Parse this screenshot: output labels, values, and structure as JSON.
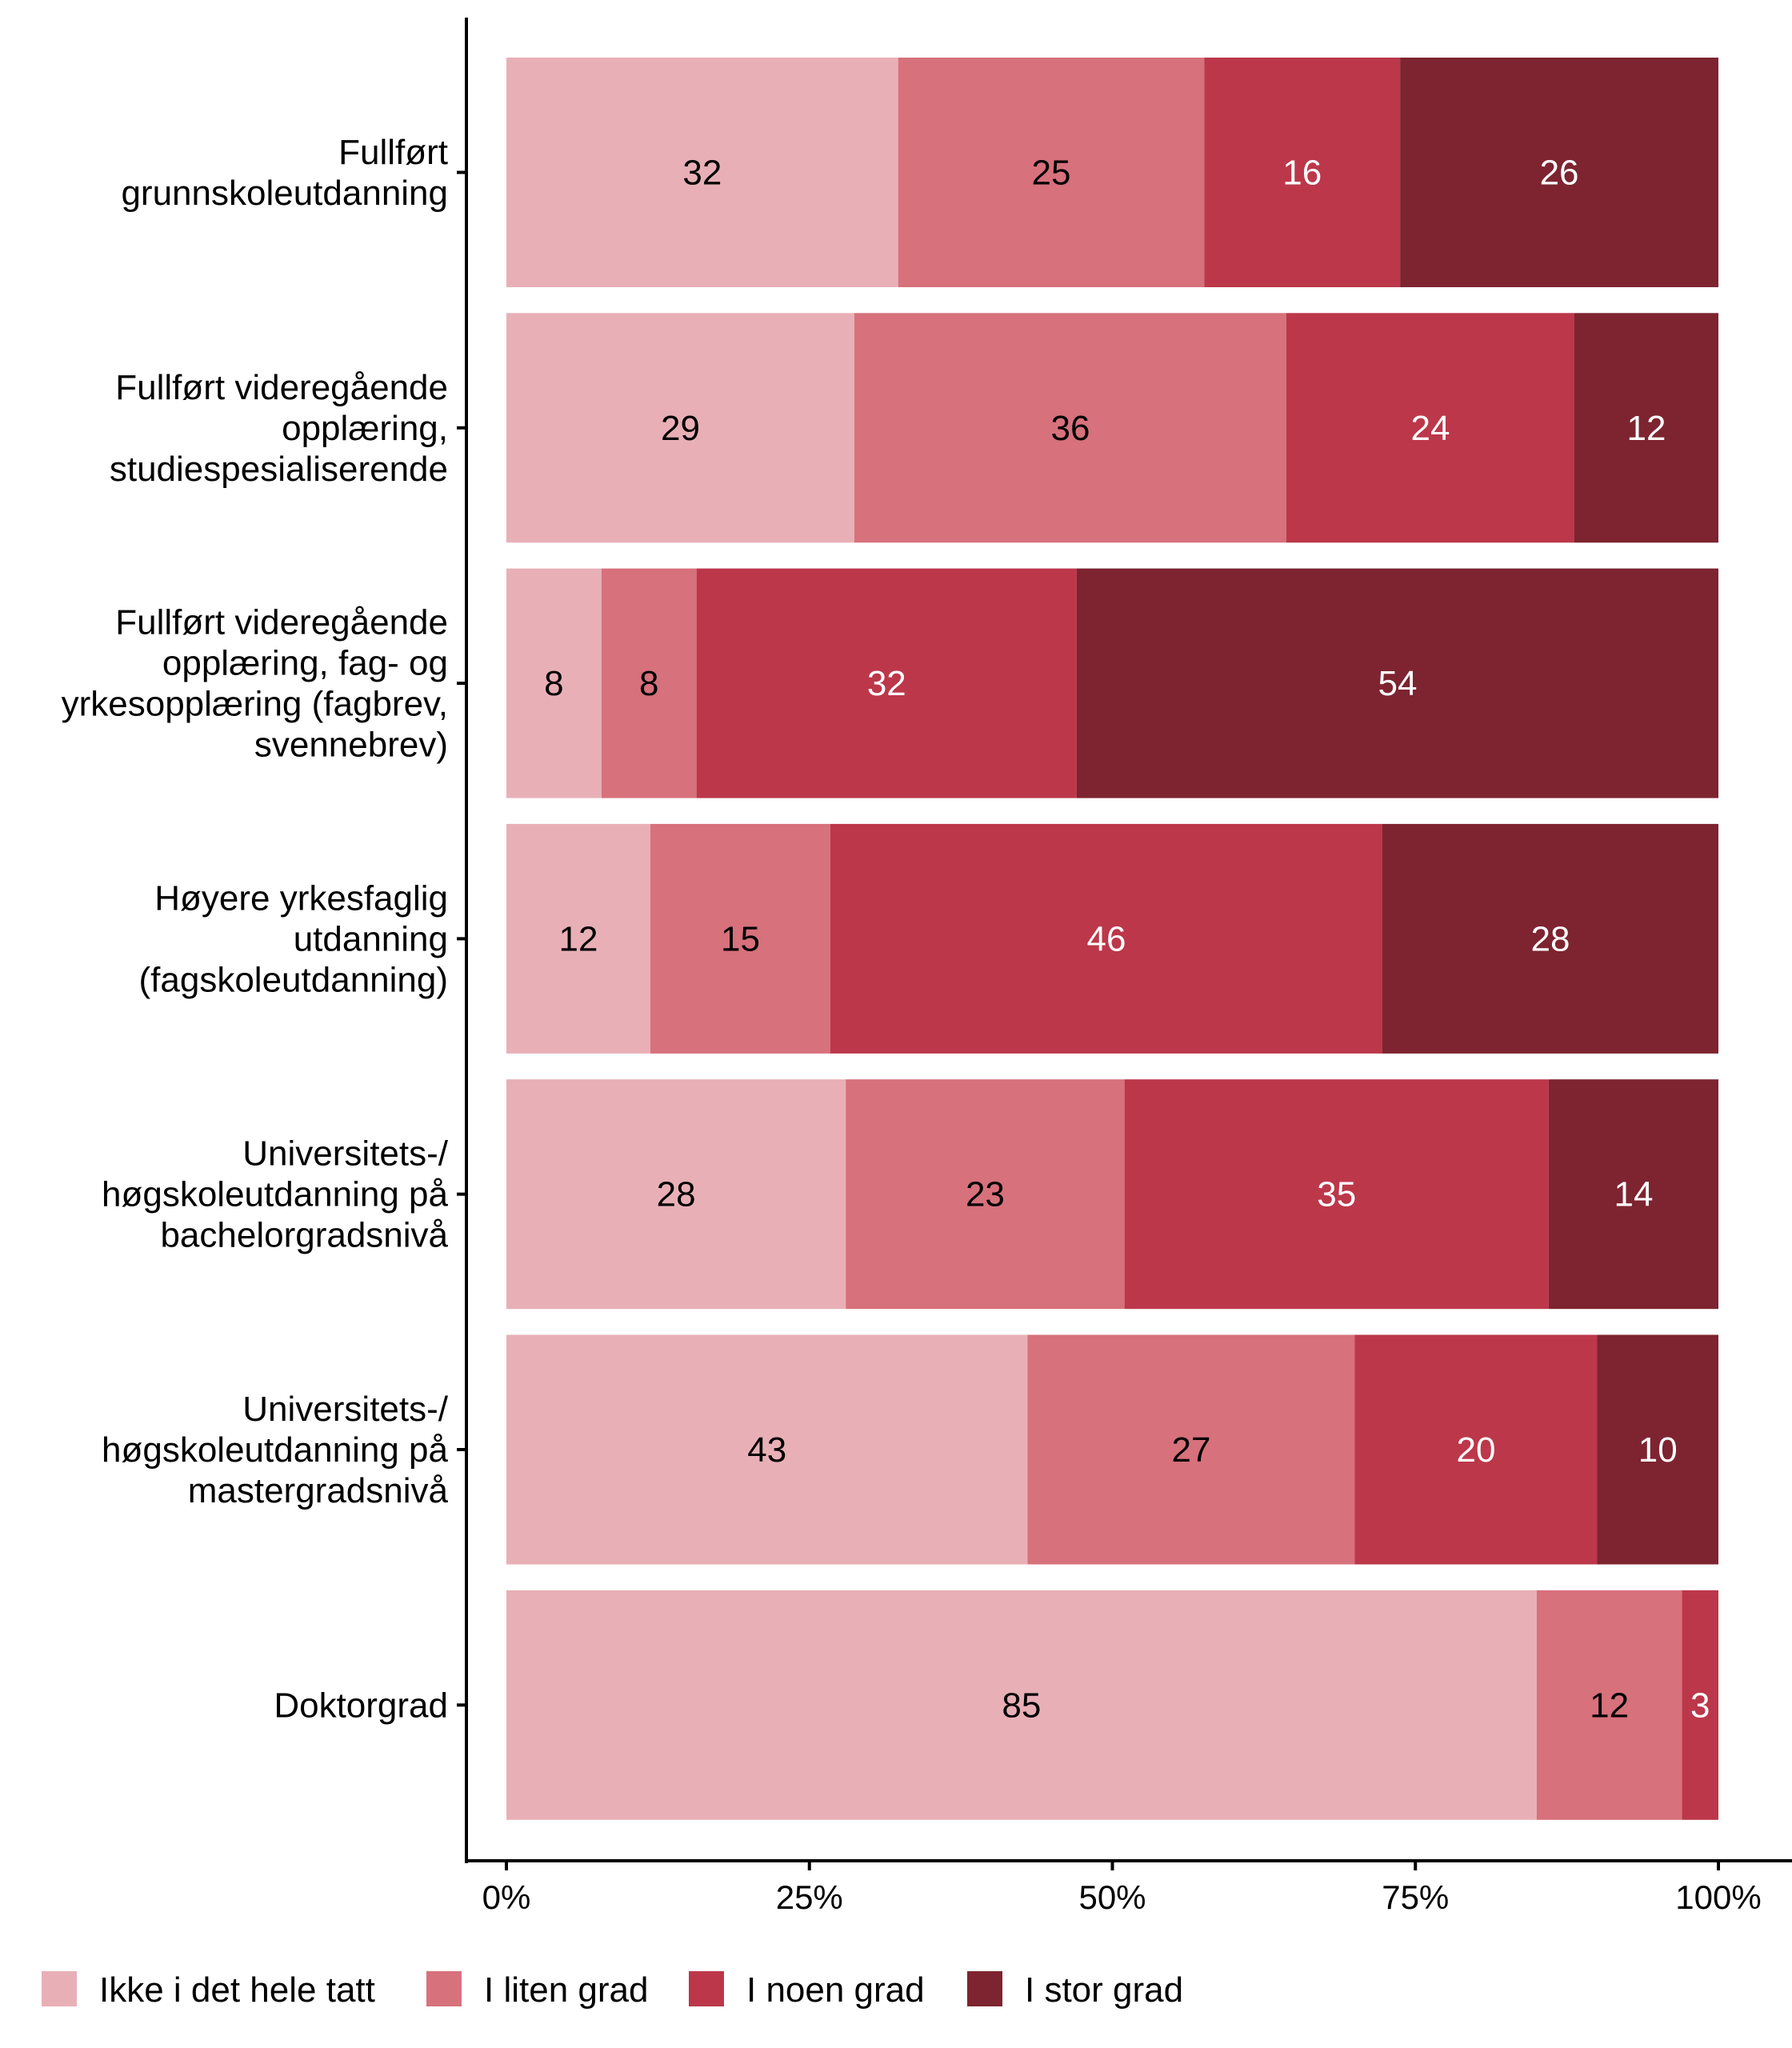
{
  "chart_data": {
    "type": "bar",
    "orientation": "horizontal",
    "stacked": true,
    "normalized_percent": true,
    "title": "",
    "xlabel": "",
    "ylabel": "",
    "xlim": [
      0,
      100
    ],
    "x_ticks": [
      "0%",
      "25%",
      "50%",
      "75%",
      "100%"
    ],
    "grid": false,
    "legend_position": "bottom",
    "categories": [
      [
        "Fullført",
        "grunnskoleutdanning"
      ],
      [
        "Fullført videregående",
        "opplæring,",
        "studiespesialiserende"
      ],
      [
        "Fullført videregående",
        "opplæring, fag- og",
        "yrkesopplæring (fagbrev,",
        "svennebrev)"
      ],
      [
        "Høyere yrkesfaglig",
        "utdanning",
        "(fagskoleutdanning)"
      ],
      [
        "Universitets-/",
        "høgskoleutdanning på",
        "bachelorgradsnivå"
      ],
      [
        "Universitets-/",
        "høgskoleutdanning på",
        "mastergradsnivå"
      ],
      [
        "Doktorgrad"
      ]
    ],
    "series": [
      {
        "name": "Ikke i det hele tatt",
        "color": "#E8B0B6",
        "label_color": "#000000",
        "values": [
          32,
          29,
          8,
          12,
          28,
          43,
          85
        ]
      },
      {
        "name": "I liten grad",
        "color": "#D7717C",
        "label_color": "#000000",
        "values": [
          25,
          36,
          8,
          15,
          23,
          27,
          12
        ]
      },
      {
        "name": "I noen grad",
        "color": "#BC374A",
        "label_color": "#FFFFFF",
        "values": [
          16,
          24,
          32,
          46,
          35,
          20,
          3
        ]
      },
      {
        "name": "I stor grad",
        "color": "#7D2430",
        "label_color": "#FFFFFF",
        "values": [
          26,
          12,
          54,
          28,
          14,
          10,
          0
        ]
      }
    ]
  }
}
